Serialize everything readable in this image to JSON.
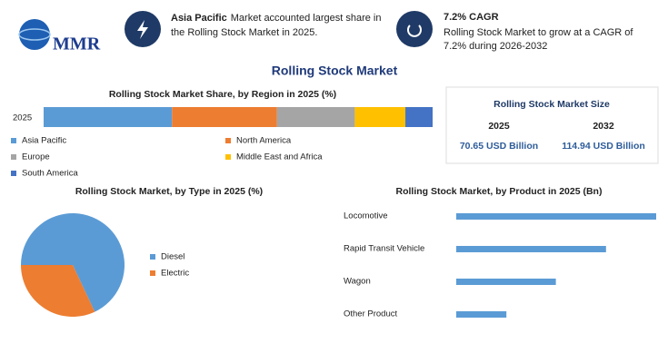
{
  "header": {
    "logo": "MMR",
    "info1": {
      "highlight": "Asia Pacific",
      "lines": [
        "Market accounted largest share in",
        "the Rolling Stock Market in 2025."
      ]
    },
    "info2": {
      "title": "7.2% CAGR",
      "lines": [
        "Rolling Stock Market to grow at a CAGR of",
        "7.2% during 2026-2032"
      ]
    }
  },
  "title": "Rolling Stock Market",
  "market_size": {
    "title": "Rolling Stock Market Size",
    "columns": [
      "2025",
      "2032"
    ],
    "values": [
      "70.65 USD Billion",
      "114.94 USD Billion"
    ]
  },
  "chart_data": [
    {
      "type": "stacked-bar",
      "title": "Rolling Stock Market Share, by Region in 2025 (%)",
      "categories": [
        "2025"
      ],
      "xlim": [
        0,
        100
      ],
      "series": [
        {
          "name": "Asia Pacific",
          "color": "#5b9bd5",
          "values": [
            33
          ]
        },
        {
          "name": "North America",
          "color": "#ed7d31",
          "values": [
            27
          ]
        },
        {
          "name": "Europe",
          "color": "#a5a5a5",
          "values": [
            20
          ]
        },
        {
          "name": "Middle East and Africa",
          "color": "#ffc000",
          "values": [
            13
          ]
        },
        {
          "name": "South America",
          "color": "#4472c4",
          "values": [
            7
          ]
        }
      ]
    },
    {
      "type": "pie",
      "title": "Rolling Stock Market, by Type in 2025 (%)",
      "categories": [
        "Diesel",
        "Electric"
      ],
      "values": [
        68,
        32
      ],
      "colors": [
        "#5b9bd5",
        "#ed7d31"
      ]
    },
    {
      "type": "bar",
      "title": "Rolling Stock Market, by Product in 2025 (Bn)",
      "categories": [
        "Locomotive",
        "Rapid Transit Vehicle",
        "Wagon",
        "Other Product"
      ],
      "values": [
        28.3,
        21.2,
        14.1,
        7.1
      ],
      "color": "#5b9bd5",
      "xlim": [
        0,
        28.3
      ]
    }
  ]
}
